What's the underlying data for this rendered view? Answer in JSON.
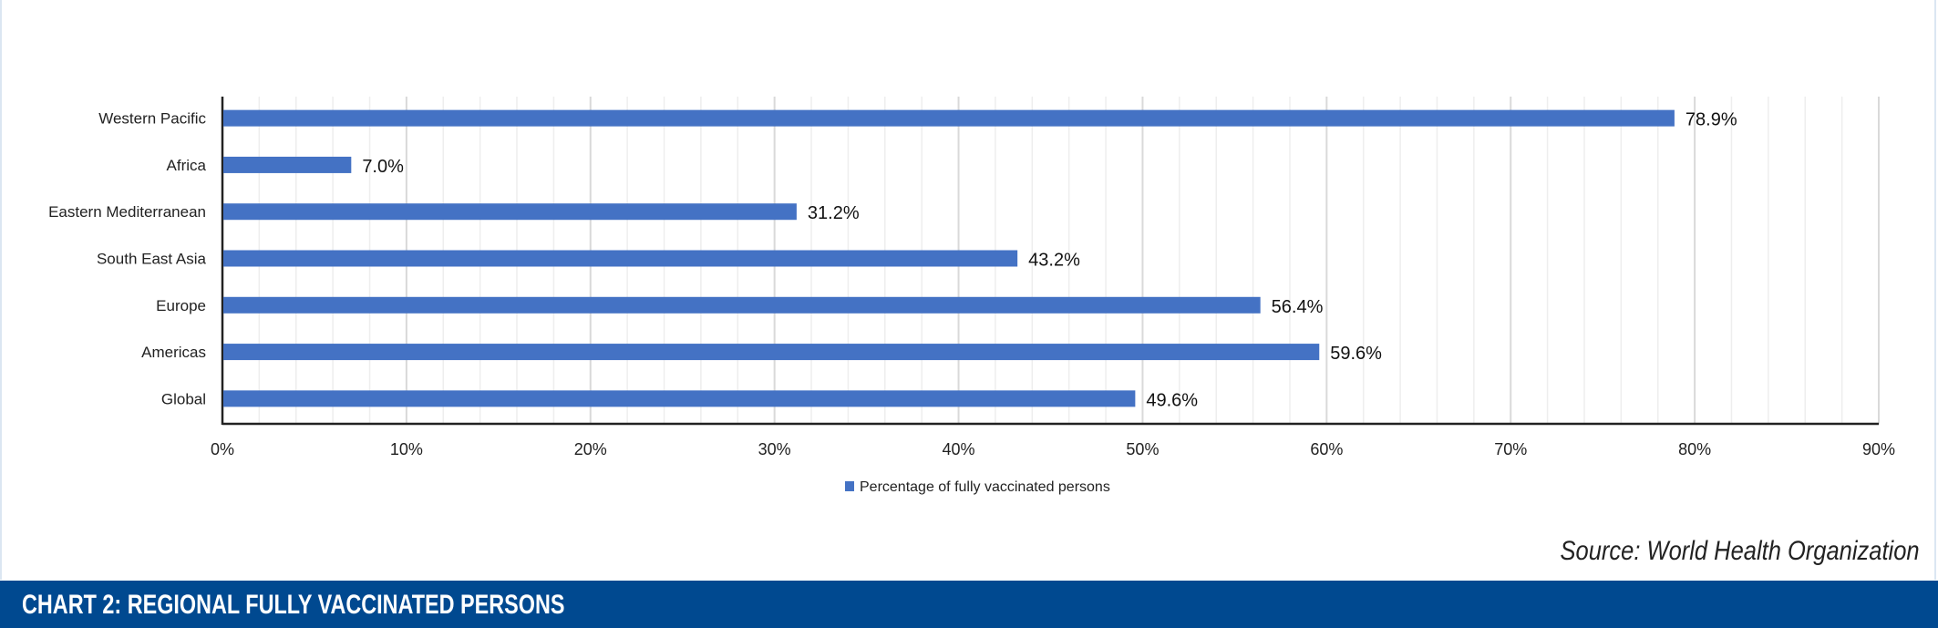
{
  "chart_data": {
    "type": "bar",
    "orientation": "horizontal",
    "categories": [
      "Western Pacific",
      "Africa",
      "Eastern Mediterranean",
      "South East Asia",
      "Europe",
      "Americas",
      "Global"
    ],
    "series": [
      {
        "name": "Percentage of fully vaccinated persons",
        "values": [
          78.9,
          7.0,
          31.2,
          43.2,
          56.4,
          59.6,
          49.6
        ],
        "color": "#4472c4"
      }
    ],
    "data_labels": [
      "78.9%",
      "7.0%",
      "31.2%",
      "43.2%",
      "56.4%",
      "59.6%",
      "49.6%"
    ],
    "xlim": [
      0,
      90
    ],
    "xticks": [
      0,
      10,
      20,
      30,
      40,
      50,
      60,
      70,
      80,
      90
    ],
    "xtick_labels": [
      "0%",
      "10%",
      "20%",
      "30%",
      "40%",
      "50%",
      "60%",
      "70%",
      "80%",
      "90%"
    ],
    "grid": true,
    "legend_position": "bottom"
  },
  "source": "Source: World Health Organization",
  "title": "CHART 2: REGIONAL FULLY VACCINATED PERSONS",
  "colors": {
    "bar": "#4472c4",
    "band": "#004990"
  }
}
